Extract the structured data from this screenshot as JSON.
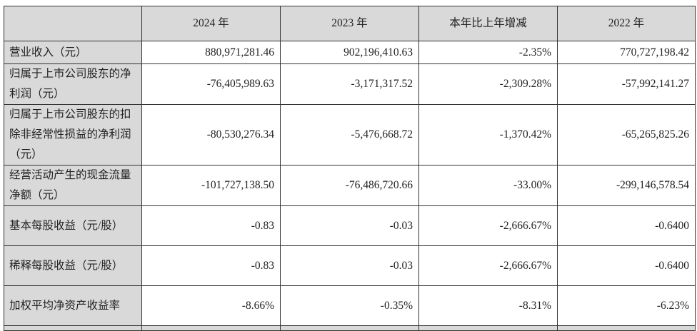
{
  "table": {
    "headers": [
      "",
      "2024 年",
      "2023 年",
      "本年比上年增减",
      "2022 年"
    ],
    "rows": [
      {
        "label": "营业收入（元）",
        "values": [
          "880,971,281.46",
          "902,196,410.63",
          "-2.35%",
          "770,727,198.42"
        ]
      },
      {
        "label": "归属于上市公司股东的净利润（元）",
        "values": [
          "-76,405,989.63",
          "-3,171,317.52",
          "-2,309.28%",
          "-57,992,141.27"
        ]
      },
      {
        "label": "归属于上市公司股东的扣除非经常性损益的净利润（元）",
        "values": [
          "-80,530,276.34",
          "-5,476,668.72",
          "-1,370.42%",
          "-65,265,825.26"
        ]
      },
      {
        "label": "经营活动产生的现金流量净额（元）",
        "values": [
          "-101,727,138.50",
          "-76,486,720.66",
          "-33.00%",
          "-299,146,578.54"
        ]
      },
      {
        "label": "基本每股收益（元/股）",
        "values": [
          "-0.83",
          "-0.03",
          "-2,666.67%",
          "-0.6400"
        ]
      },
      {
        "label": "稀释每股收益（元/股）",
        "values": [
          "-0.83",
          "-0.03",
          "-2,666.67%",
          "-0.6400"
        ]
      },
      {
        "label": "加权平均净资产收益率",
        "values": [
          "-8.66%",
          "-0.35%",
          "-8.31%",
          "-6.23%"
        ]
      }
    ]
  }
}
